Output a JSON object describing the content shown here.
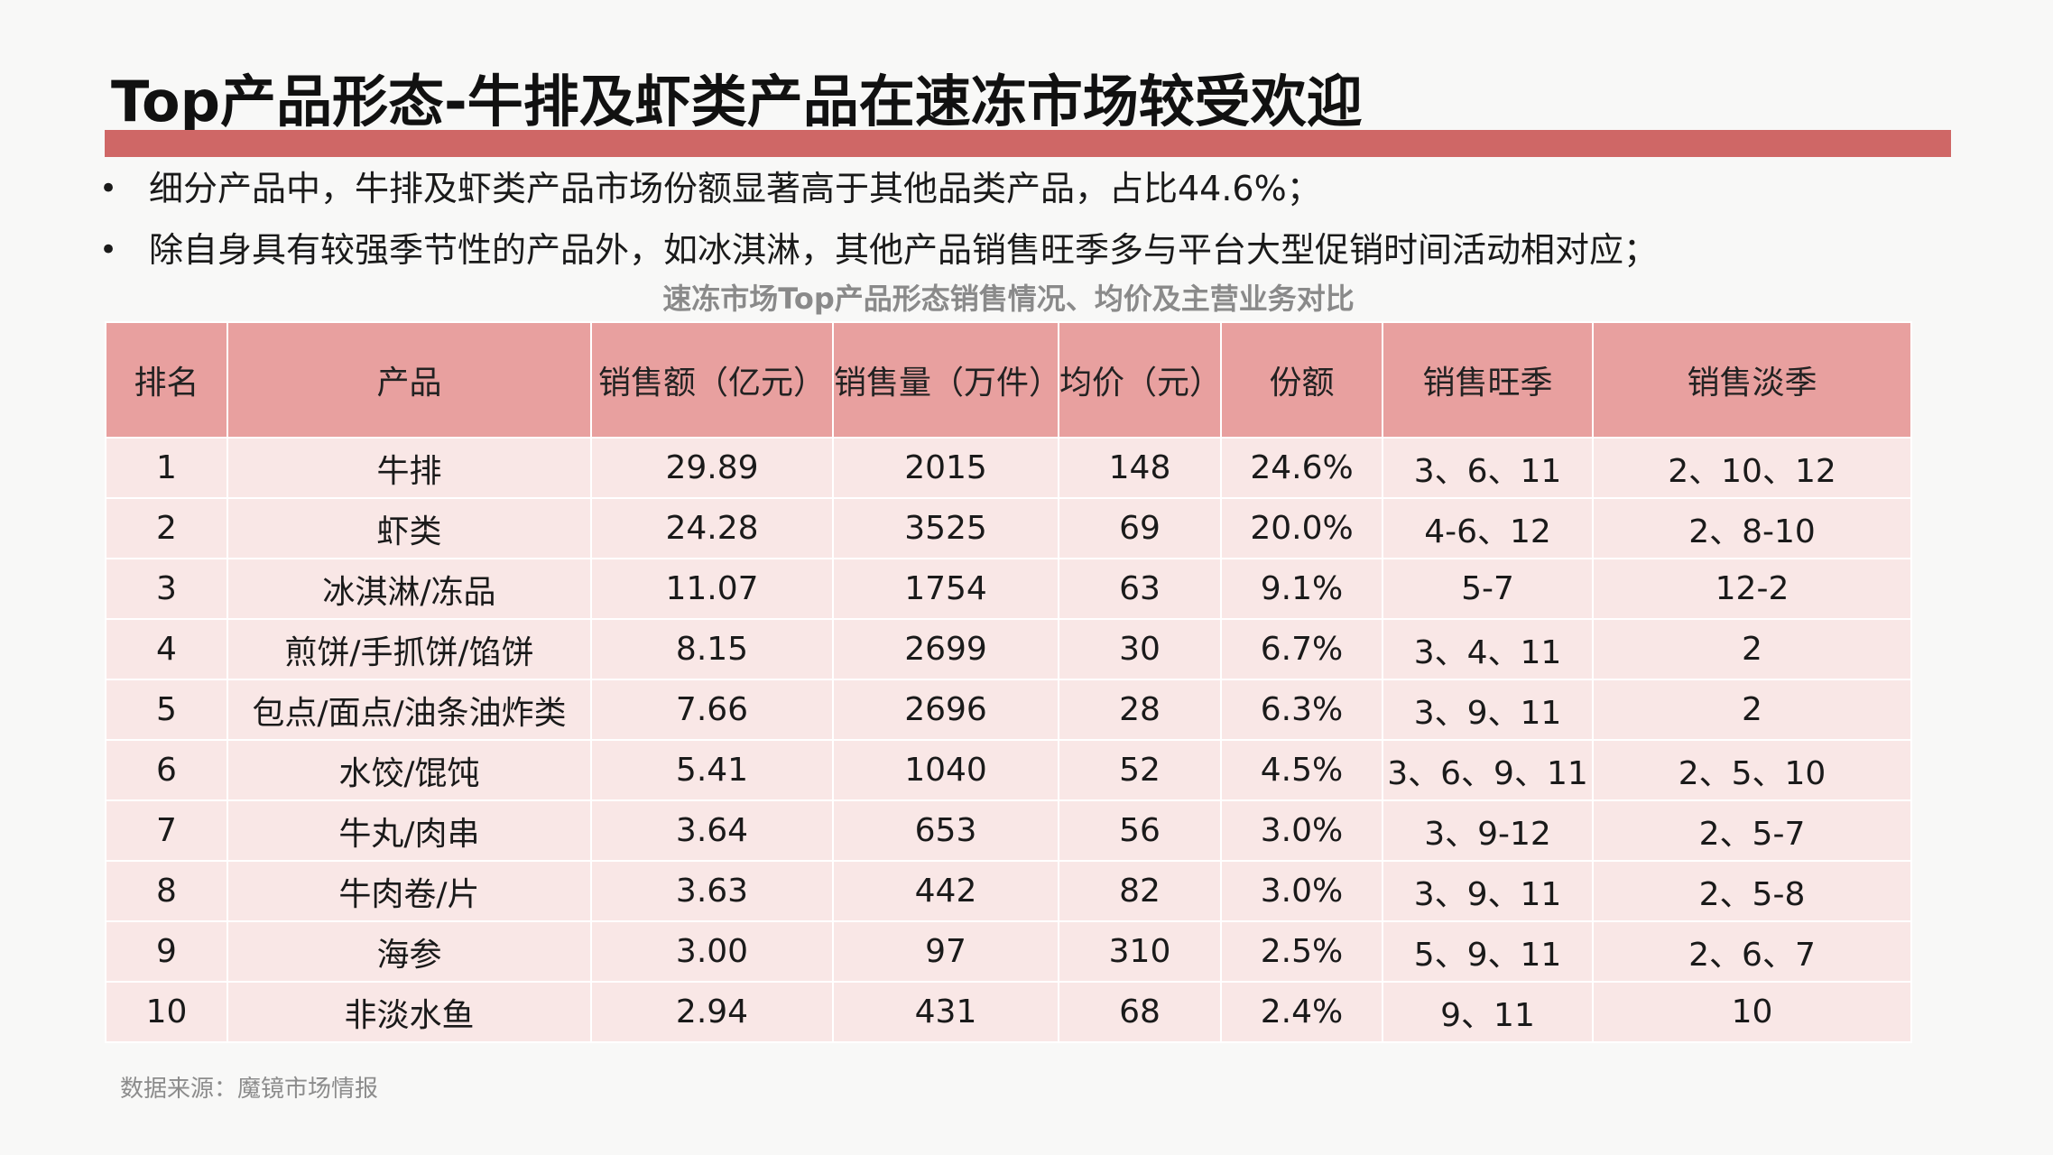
{
  "title": "Top产品形态-牛排及虾类产品在速冻市场较受欢迎",
  "bullets": [
    "细分产品中，牛排及虾类产品市场份额显著高于其他品类产品，占比44.6%；",
    "除自身具有较强季节性的产品外，如冰淇淋，其他产品销售旺季多与平台大型促销时间活动相对应；"
  ],
  "bullet_marker": "•",
  "table_title": "速冻市场Top产品形态销售情况、均价及主营业务对比",
  "table": {
    "headers": [
      "排名",
      "产品",
      "销售额（亿元）",
      "销售量（万件）",
      "均价（元）",
      "份额",
      "销售旺季",
      "销售淡季"
    ],
    "rows": [
      [
        "1",
        "牛排",
        "29.89",
        "2015",
        "148",
        "24.6%",
        "3、6、11",
        "2、10、12"
      ],
      [
        "2",
        "虾类",
        "24.28",
        "3525",
        "69",
        "20.0%",
        "4-6、12",
        "2、8-10"
      ],
      [
        "3",
        "冰淇淋/冻品",
        "11.07",
        "1754",
        "63",
        "9.1%",
        "5-7",
        "12-2"
      ],
      [
        "4",
        "煎饼/手抓饼/馅饼",
        "8.15",
        "2699",
        "30",
        "6.7%",
        "3、4、11",
        "2"
      ],
      [
        "5",
        "包点/面点/油条油炸类",
        "7.66",
        "2696",
        "28",
        "6.3%",
        "3、9、11",
        "2"
      ],
      [
        "6",
        "水饺/馄饨",
        "5.41",
        "1040",
        "52",
        "4.5%",
        "3、6、9、11",
        "2、5、10"
      ],
      [
        "7",
        "牛丸/肉串",
        "3.64",
        "653",
        "56",
        "3.0%",
        "3、9-12",
        "2、5-7"
      ],
      [
        "8",
        "牛肉卷/片",
        "3.63",
        "442",
        "82",
        "3.0%",
        "3、9、11",
        "2、5-8"
      ],
      [
        "9",
        "海参",
        "3.00",
        "97",
        "310",
        "2.5%",
        "5、9、11",
        "2、6、7"
      ],
      [
        "10",
        "非淡水鱼",
        "2.94",
        "431",
        "68",
        "2.4%",
        "9、11",
        "10"
      ]
    ]
  },
  "source": "数据来源：魔镜市场情报",
  "colors": {
    "accent_bar": "#cf6766",
    "header_bg": "#e8a09f",
    "row_bg": "#f9e7e6"
  }
}
